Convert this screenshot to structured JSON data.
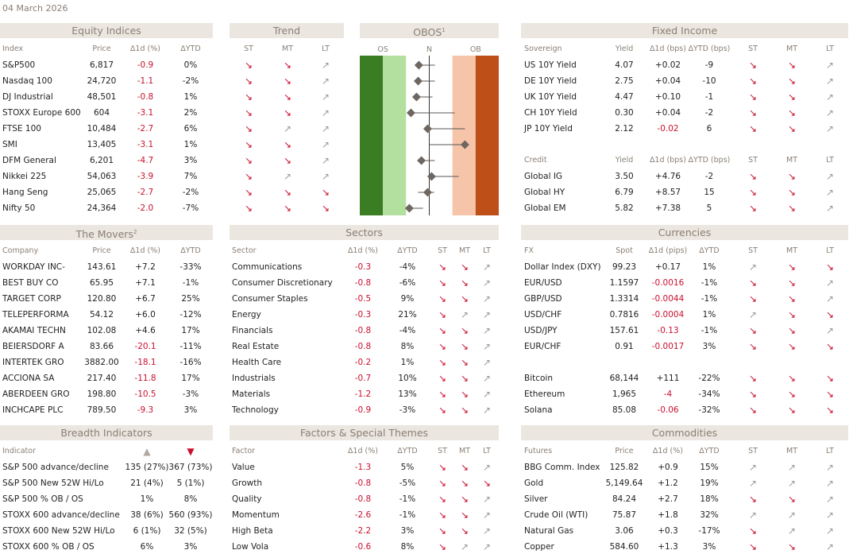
{
  "date": "04 March 2026",
  "equity": {
    "title": "Equity Indices",
    "blocks": [
      {
        "columns": [
          "Index",
          "Price",
          "∆1d (%)",
          "∆YTD"
        ],
        "rows": [
          [
            "S&P500",
            "6,817",
            "-0.9",
            "0%"
          ],
          [
            "Nasdaq 100",
            "24,720",
            "-1.1",
            "-2%"
          ],
          [
            "DJ Industrial",
            "48,501",
            "-0.8",
            "1%"
          ],
          [
            "STOXX Europe 600",
            "604",
            "-3.1",
            "2%"
          ],
          [
            "FTSE 100",
            "10,484",
            "-2.7",
            "6%"
          ],
          [
            "SMI",
            "13,405",
            "-3.1",
            "1%"
          ],
          [
            "DFM General",
            "6,201",
            "-4.7",
            "3%"
          ],
          [
            "Nikkei 225",
            "54,063",
            "-3.9",
            "7%"
          ],
          [
            "Hang Seng",
            "25,065",
            "-2.7",
            "-2%"
          ],
          [
            "Nifty 50",
            "24,364",
            "-2.0",
            "-7%"
          ]
        ]
      }
    ]
  },
  "trend": {
    "title": "Trend",
    "blocks": [
      {
        "columns": [
          "ST",
          "MT",
          "LT"
        ],
        "rows": [
          [
            "↘",
            "↘",
            "↗"
          ],
          [
            "↘",
            "↘",
            "↗"
          ],
          [
            "↘",
            "↘",
            "↗"
          ],
          [
            "↘",
            "↘",
            "↗"
          ],
          [
            "↘",
            "↗",
            "↗"
          ],
          [
            "↘",
            "↘",
            "↗"
          ],
          [
            "↘",
            "↘",
            "↗"
          ],
          [
            "↘",
            "↗",
            "↗"
          ],
          [
            "↘",
            "↘",
            "↘"
          ],
          [
            "↘",
            "↘",
            "↘"
          ]
        ]
      }
    ]
  },
  "obos": {
    "title": "OBOS",
    "note": "1",
    "columns": [
      "OS",
      "N",
      "OB"
    ],
    "xlim": [
      -3,
      3
    ],
    "bands": [
      -2,
      -1,
      1,
      2
    ],
    "band_colors": [
      "#3a7d22",
      "#b4e09f",
      "#ffffff",
      "#f6c5a9",
      "#bf4f18"
    ],
    "values": [
      -0.45,
      -0.48,
      -0.55,
      -0.79,
      -0.07,
      1.54,
      -0.34,
      0.1,
      -0.07,
      -0.86
    ],
    "low": [
      -0.45,
      -0.65,
      -0.55,
      -0.79,
      -0.07,
      0.0,
      -0.34,
      0.1,
      -0.48,
      -0.86
    ],
    "high": [
      0.24,
      0.24,
      0.14,
      1.1,
      1.54,
      1.54,
      0.24,
      1.27,
      0.21,
      -0.27
    ]
  },
  "fixed_income": {
    "title": "Fixed Income",
    "blocks": [
      {
        "columns": [
          "Sovereign",
          "Yield",
          "∆1d (bps)",
          "∆YTD (bps)",
          "ST",
          "MT",
          "LT"
        ],
        "rows": [
          [
            "US 10Y Yield",
            "4.07",
            "+0.02",
            "-9",
            "↘",
            "↘",
            "↗"
          ],
          [
            "DE 10Y Yield",
            "2.75",
            "+0.04",
            "-10",
            "↘",
            "↘",
            "↗"
          ],
          [
            "UK 10Y Yield",
            "4.47",
            "+0.10",
            "-1",
            "↘",
            "↘",
            "↗"
          ],
          [
            "CH 10Y Yield",
            "0.30",
            "+0.04",
            "-2",
            "↘",
            "↘",
            "↗"
          ],
          [
            "JP 10Y Yield",
            "2.12",
            "-0.02",
            "6",
            "↘",
            "↘",
            "↗"
          ]
        ]
      },
      {
        "columns": [
          "Credit",
          "Yield",
          "∆1d (bps)",
          "∆YTD (bps)",
          "ST",
          "MT",
          "LT"
        ],
        "rows": [
          [
            "Global IG",
            "3.50",
            "+4.76",
            "-2",
            "↘",
            "↘",
            "↗"
          ],
          [
            "Global HY",
            "6.79",
            "+8.57",
            "15",
            "↘",
            "↘",
            "↗"
          ],
          [
            "Global EM",
            "5.82",
            "+7.38",
            "5",
            "↘",
            "↘",
            "↗"
          ]
        ]
      }
    ]
  },
  "movers": {
    "title": "The Movers",
    "note": "2",
    "blocks": [
      {
        "columns": [
          "Company",
          "Price",
          "∆1d (%)",
          "∆YTD"
        ],
        "rows": [
          [
            "WORKDAY INC-",
            "143.61",
            "+7.2",
            "-33%"
          ],
          [
            "BEST BUY CO",
            "65.95",
            "+7.1",
            "-1%"
          ],
          [
            "TARGET CORP",
            "120.80",
            "+6.7",
            "25%"
          ],
          [
            "TELEPERFORMA",
            "54.12",
            "+6.0",
            "-12%"
          ],
          [
            "AKAMAI TECHN",
            "102.08",
            "+4.6",
            "17%"
          ],
          [
            "BEIERSDORF A",
            "83.66",
            "-20.1",
            "-11%"
          ],
          [
            "INTERTEK GRO",
            "3882.00",
            "-18.1",
            "-16%"
          ],
          [
            "ACCIONA SA",
            "217.40",
            "-11.8",
            "17%"
          ],
          [
            "ABERDEEN GRO",
            "198.80",
            "-10.5",
            "-3%"
          ],
          [
            "INCHCAPE PLC",
            "789.50",
            "-9.3",
            "3%"
          ]
        ]
      }
    ]
  },
  "sectors": {
    "title": "Sectors",
    "blocks": [
      {
        "columns": [
          "Sector",
          "∆1d (%)",
          "∆YTD",
          "ST",
          "MT",
          "LT"
        ],
        "rows": [
          [
            "Communications",
            "-0.3",
            "-4%",
            "↘",
            "↘",
            "↗"
          ],
          [
            "Consumer Discretionary",
            "-0.8",
            "-6%",
            "↘",
            "↘",
            "↗"
          ],
          [
            "Consumer Staples",
            "-0.5",
            "9%",
            "↘",
            "↘",
            "↗"
          ],
          [
            "Energy",
            "-0.3",
            "21%",
            "↘",
            "↗",
            "↗"
          ],
          [
            "Financials",
            "-0.8",
            "-4%",
            "↘",
            "↘",
            "↗"
          ],
          [
            "Real Estate",
            "-0.8",
            "8%",
            "↘",
            "↘",
            "↗"
          ],
          [
            "Health Care",
            "-0.2",
            "1%",
            "↘",
            "↘",
            "↗"
          ],
          [
            "Industrials",
            "-0.7",
            "10%",
            "↘",
            "↘",
            "↗"
          ],
          [
            "Materials",
            "-1.2",
            "13%",
            "↘",
            "↘",
            "↗"
          ],
          [
            "Technology",
            "-0.9",
            "-3%",
            "↘",
            "↘",
            "↗"
          ]
        ]
      }
    ]
  },
  "currencies": {
    "title": "Currencies",
    "blocks": [
      {
        "columns": [
          "FX",
          "Spot",
          "∆1d (pips)",
          "∆YTD",
          "ST",
          "MT",
          "LT"
        ],
        "rows": [
          [
            "Dollar Index (DXY)",
            "99.23",
            "+0.17",
            "1%",
            "↗",
            "↘",
            "↘"
          ],
          [
            "EUR/USD",
            "1.1597",
            "-0.0016",
            "-1%",
            "↘",
            "↘",
            "↗"
          ],
          [
            "GBP/USD",
            "1.3314",
            "-0.0044",
            "-1%",
            "↘",
            "↘",
            "↗"
          ],
          [
            "USD/CHF",
            "0.7816",
            "-0.0004",
            "1%",
            "↗",
            "↘",
            "↘"
          ],
          [
            "USD/JPY",
            "157.61",
            "-0.13",
            "-1%",
            "↘",
            "↘",
            "↗"
          ],
          [
            "EUR/CHF",
            "0.91",
            "-0.0017",
            "3%",
            "↘",
            "↘",
            "↘"
          ]
        ]
      },
      {
        "rows": [
          [
            "Bitcoin",
            "68,144",
            "+111",
            "-22%",
            "↘",
            "↘",
            "↘"
          ],
          [
            "Ethereum",
            "1,965",
            "-4",
            "-34%",
            "↘",
            "↘",
            "↘"
          ],
          [
            "Solana",
            "85.08",
            "-0.06",
            "-32%",
            "↘",
            "↘",
            "↘"
          ]
        ]
      }
    ]
  },
  "breadth": {
    "title": "Breadth Indicators",
    "blocks": [
      {
        "columns": [
          "Indicator",
          "▲",
          "▼"
        ],
        "rows": [
          [
            "S&P 500 advance/decline",
            "135 (27%)",
            "367 (73%)"
          ],
          [
            "S&P 500 New 52W Hi/Lo",
            "21 (4%)",
            "5 (1%)"
          ],
          [
            "S&P 500 % OB / OS",
            "1%",
            "8%"
          ],
          [
            "STOXX 600 advance/decline",
            "38 (6%)",
            "560 (93%)"
          ],
          [
            "STOXX 600 New 52W Hi/Lo",
            "6 (1%)",
            "32 (5%)"
          ],
          [
            "STOXX 600 % OB / OS",
            "6%",
            "3%"
          ]
        ]
      }
    ]
  },
  "factors": {
    "title": "Factors & Special Themes",
    "blocks": [
      {
        "columns": [
          "Factor",
          "∆1d (%)",
          "∆YTD",
          "ST",
          "MT",
          "LT"
        ],
        "rows": [
          [
            "Value",
            "-1.3",
            "5%",
            "↘",
            "↘",
            "↗"
          ],
          [
            "Growth",
            "-0.8",
            "-5%",
            "↘",
            "↘",
            "↘"
          ],
          [
            "Quality",
            "-0.8",
            "-1%",
            "↘",
            "↘",
            "↗"
          ],
          [
            "Momentum",
            "-2.6",
            "-1%",
            "↘",
            "↘",
            "↗"
          ],
          [
            "High Beta",
            "-2.2",
            "3%",
            "↘",
            "↘",
            "↗"
          ],
          [
            "Low Vola",
            "-0.6",
            "8%",
            "↘",
            "↗",
            "↗"
          ]
        ]
      }
    ]
  },
  "commodities": {
    "title": "Commodities",
    "blocks": [
      {
        "columns": [
          "Futures",
          "Price",
          "∆1d (%)",
          "∆YTD",
          "ST",
          "MT",
          "LT"
        ],
        "rows": [
          [
            "BBG Comm. Index",
            "125.82",
            "+0.9",
            "15%",
            "↗",
            "↗",
            "↗"
          ],
          [
            "Gold",
            "5,149.64",
            "+1.2",
            "19%",
            "↗",
            "↗",
            "↗"
          ],
          [
            "Silver",
            "84.24",
            "+2.7",
            "18%",
            "↘",
            "↘",
            "↗"
          ],
          [
            "Crude Oil (WTI)",
            "75.87",
            "+1.8",
            "32%",
            "↗",
            "↗",
            "↗"
          ],
          [
            "Natural Gas",
            "3.06",
            "+0.3",
            "-17%",
            "↘",
            "↗",
            "↗"
          ],
          [
            "Copper",
            "584.60",
            "+1.3",
            "3%",
            "↘",
            "↘",
            "↗"
          ]
        ]
      }
    ]
  }
}
